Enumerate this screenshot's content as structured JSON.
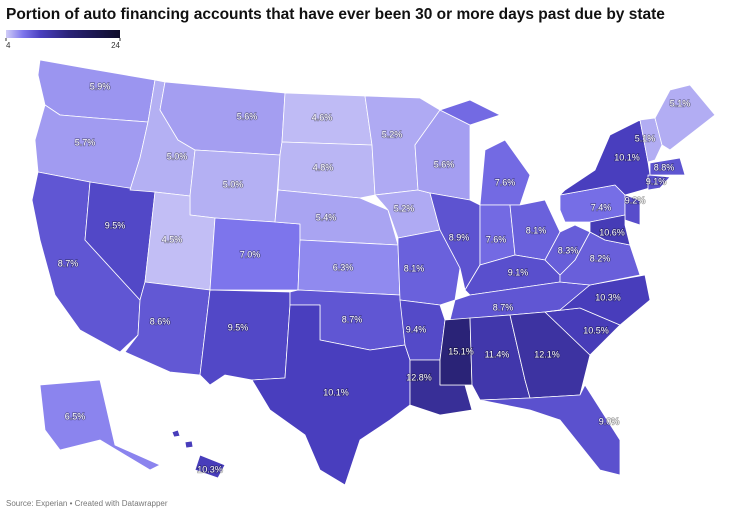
{
  "chart_data": {
    "type": "choropleth",
    "title": "Portion of auto financing accounts that have ever been 30 or more days past due by state",
    "source": "Source: Experian • Created with Datawrapper",
    "clim": [
      4,
      24
    ],
    "cticks": [
      4,
      24
    ],
    "values": [
      5.9,
      5.7,
      8.7,
      9.5,
      5.0,
      5.6,
      5.0,
      4.5,
      8.6,
      7.0,
      9.5,
      4.6,
      4.8,
      5.4,
      6.3,
      8.7,
      10.1,
      5.2,
      5.2,
      8.1,
      9.4,
      12.8,
      5.6,
      8.9,
      7.6,
      7.6,
      8.1,
      9.1,
      8.7,
      15.1,
      11.4,
      12.1,
      9.0,
      10.5,
      10.3,
      8.2,
      8.3,
      7.4,
      10.1,
      5.1,
      5.1,
      8.8,
      9.1,
      9.2,
      10.6,
      6.5,
      10.3
    ],
    "value_labels": [
      "5.9%",
      "5.7%",
      "8.7%",
      "9.5%",
      "5.0%",
      "5.6%",
      "5.0%",
      "4.5%",
      "8.6%",
      "7.0%",
      "9.5%",
      "4.6%",
      "4.8%",
      "5.4%",
      "6.3%",
      "8.7%",
      "10.1%",
      "5.2%",
      "5.2%",
      "8.1%",
      "9.4%",
      "12.8%",
      "5.6%",
      "8.9%",
      "7.6%",
      "7.6%",
      "8.1%",
      "9.1%",
      "8.7%",
      "15.1%",
      "11.4%",
      "12.1%",
      "9.0%",
      "10.5%",
      "10.3%",
      "8.2%",
      "8.3%",
      "7.4%",
      "10.1%",
      "5.1%",
      "5.1%",
      "8.8%",
      "9.1%",
      "9.2%",
      "10.6%",
      "6.5%",
      "10.3%"
    ]
  }
}
